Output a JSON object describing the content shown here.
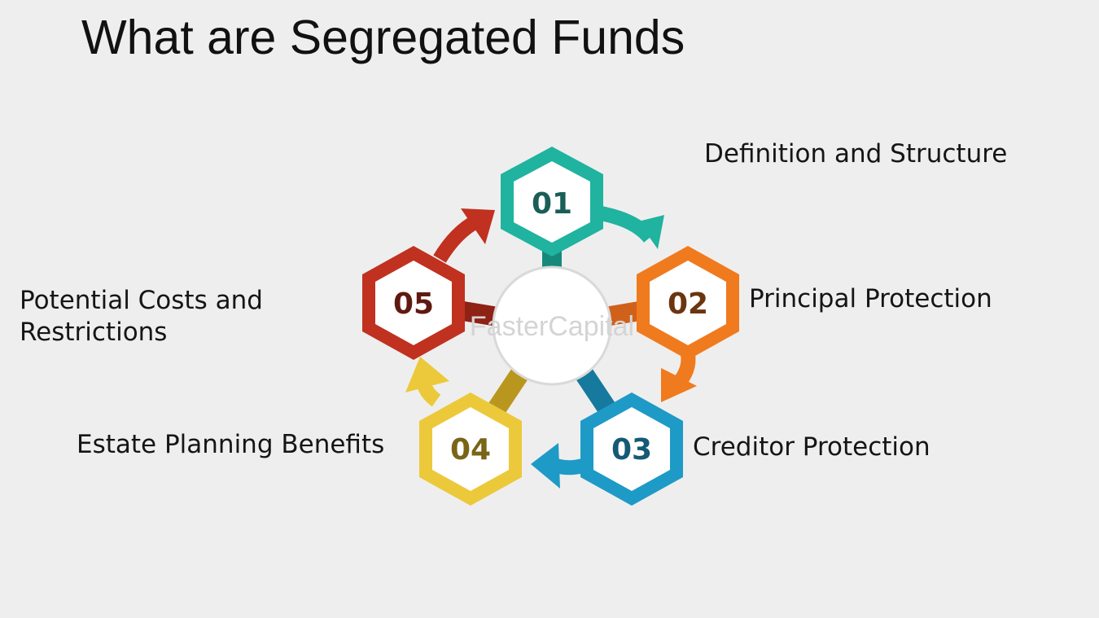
{
  "title": "What are Segregated Funds",
  "watermark": "FasterCapital",
  "steps": [
    {
      "number": "01",
      "label": "Definition and Structure",
      "color": "#1fb3a0",
      "num_color": "#1b5e57"
    },
    {
      "number": "02",
      "label": "Principal Protection",
      "color": "#f07a1e",
      "num_color": "#6b3510"
    },
    {
      "number": "03",
      "label": "Creditor Protection",
      "color": "#1e9ac7",
      "num_color": "#155a75"
    },
    {
      "number": "04",
      "label": "Estate Planning Benefits",
      "color": "#ecc93a",
      "num_color": "#7a6417"
    },
    {
      "number": "05",
      "label": "Potential Costs and Restrictions",
      "color": "#c0311f",
      "num_color": "#5e1a12"
    }
  ],
  "colors": {
    "background": "#efeeee",
    "center_circle": "#ffffff"
  }
}
